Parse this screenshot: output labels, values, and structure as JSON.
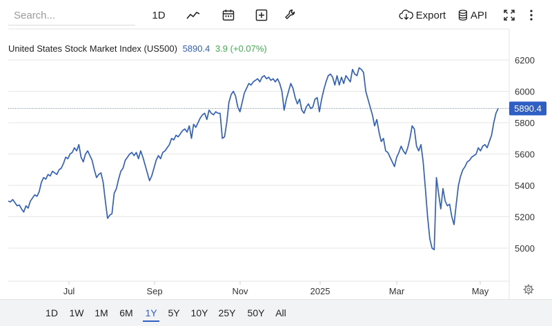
{
  "toolbar": {
    "search_placeholder": "Search...",
    "interval_label": "1D",
    "export_label": "Export",
    "api_label": "API"
  },
  "title": {
    "name": "United States Stock Market Index (US500)",
    "price": "5890.4",
    "change": "3.9 (+0.07%)"
  },
  "ranges": [
    "1D",
    "1W",
    "1M",
    "6M",
    "1Y",
    "5Y",
    "10Y",
    "25Y",
    "50Y",
    "All"
  ],
  "active_range": "1Y",
  "colors": {
    "line": "#2f5fc4",
    "up": "#3bb04a",
    "grid": "#e6e6e6"
  },
  "chart_data": {
    "type": "line",
    "x_tick_labels": [
      "Jul",
      "Sep",
      "Nov",
      "2025",
      "Mar",
      "May"
    ],
    "y_tick_labels": [
      "6200",
      "6000",
      "5800",
      "5600",
      "5400",
      "5200",
      "5000"
    ],
    "ylim": [
      4900,
      6300
    ],
    "current_value": 5890.4,
    "current_label": "5890.4",
    "series": [
      {
        "values": [
          5300,
          5295,
          5310,
          5290,
          5270,
          5275,
          5250,
          5230,
          5270,
          5255,
          5300,
          5320,
          5340,
          5330,
          5360,
          5420,
          5450,
          5440,
          5470,
          5460,
          5490,
          5480,
          5470,
          5500,
          5510,
          5540,
          5580,
          5570,
          5600,
          5610,
          5640,
          5620,
          5660,
          5580,
          5550,
          5600,
          5620,
          5590,
          5560,
          5500,
          5450,
          5470,
          5480,
          5420,
          5300,
          5190,
          5210,
          5220,
          5350,
          5380,
          5440,
          5490,
          5510,
          5560,
          5580,
          5600,
          5610,
          5590,
          5610,
          5570,
          5620,
          5580,
          5530,
          5480,
          5430,
          5460,
          5510,
          5560,
          5590,
          5570,
          5610,
          5620,
          5640,
          5660,
          5700,
          5690,
          5720,
          5710,
          5730,
          5750,
          5760,
          5740,
          5780,
          5700,
          5790,
          5770,
          5800,
          5830,
          5850,
          5860,
          5820,
          5880,
          5860,
          5850,
          5870,
          5860,
          5860,
          5700,
          5710,
          5800,
          5930,
          5980,
          6000,
          5970,
          5900,
          5870,
          5930,
          5990,
          6020,
          6050,
          6040,
          6060,
          6070,
          6080,
          6060,
          6090,
          6100,
          6080,
          6090,
          6070,
          6080,
          6060,
          6080,
          6050,
          6000,
          5880,
          5950,
          6000,
          6050,
          6020,
          5960,
          5920,
          5950,
          5880,
          5860,
          5900,
          5920,
          5890,
          5900,
          5950,
          5960,
          5870,
          5950,
          6010,
          6060,
          6100,
          6110,
          6090,
          6040,
          6100,
          6040,
          6090,
          6050,
          6100,
          6080,
          6060,
          6140,
          6110,
          6100,
          6150,
          6140,
          6120,
          6000,
          5950,
          5900,
          5850,
          5780,
          5820,
          5740,
          5680,
          5700,
          5620,
          5610,
          5580,
          5550,
          5520,
          5580,
          5610,
          5650,
          5620,
          5600,
          5640,
          5700,
          5780,
          5760,
          5650,
          5620,
          5660,
          5550,
          5380,
          5200,
          5060,
          5000,
          4990,
          5450,
          5350,
          5250,
          5380,
          5300,
          5270,
          5280,
          5200,
          5150,
          5280,
          5400,
          5460,
          5500,
          5520,
          5550,
          5560,
          5580,
          5590,
          5600,
          5640,
          5620,
          5650,
          5660,
          5640,
          5680,
          5720,
          5800,
          5860,
          5890.4
        ]
      }
    ]
  }
}
